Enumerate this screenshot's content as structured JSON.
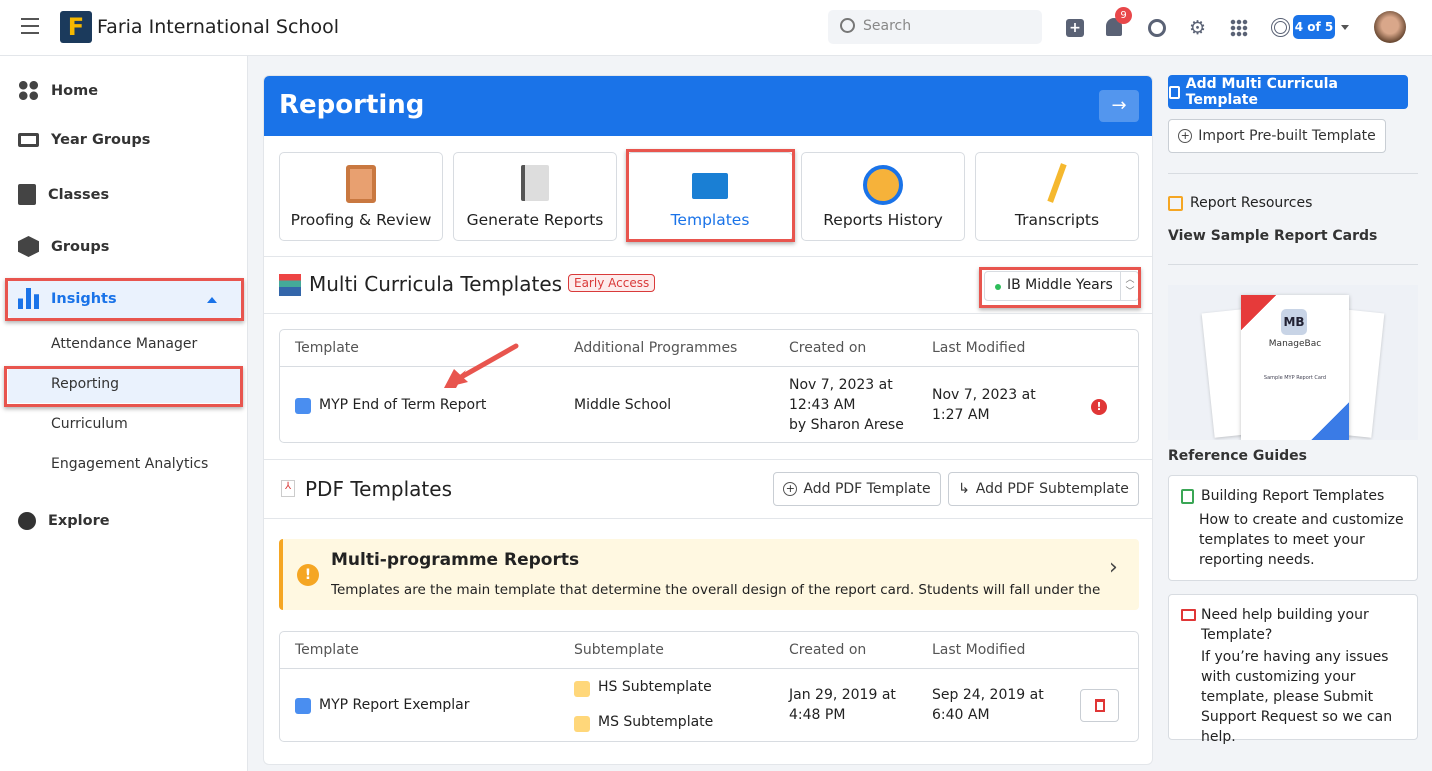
{
  "topbar": {
    "school_name": "Faria International School",
    "search_placeholder": "Search",
    "notification_count": "9",
    "progress_badge": "4 of 5"
  },
  "sidebar": {
    "items": [
      {
        "label": "Home"
      },
      {
        "label": "Year Groups"
      },
      {
        "label": "Classes"
      },
      {
        "label": "Groups"
      },
      {
        "label": "Insights"
      },
      {
        "label": "Explore"
      }
    ],
    "sub_items": [
      {
        "label": "Attendance Manager"
      },
      {
        "label": "Reporting"
      },
      {
        "label": "Curriculum"
      },
      {
        "label": "Engagement Analytics"
      }
    ]
  },
  "main": {
    "title": "Reporting",
    "tiles": [
      {
        "label": "Proofing & Review"
      },
      {
        "label": "Generate Reports"
      },
      {
        "label": "Templates"
      },
      {
        "label": "Reports History"
      },
      {
        "label": "Transcripts"
      }
    ],
    "multi": {
      "title": "Multi Curricula Templates",
      "badge": "Early Access",
      "programme": "IB Middle Years",
      "columns": [
        "Template",
        "Additional Programmes",
        "Created on",
        "Last Modified"
      ],
      "rows": [
        {
          "template": "MYP End of Term Report",
          "programmes": "Middle School",
          "created": "Nov 7, 2023 at 12:43 AM",
          "created_by": "by Sharon Arese",
          "modified": "Nov 7, 2023 at 1:27 AM"
        }
      ]
    },
    "pdf": {
      "title": "PDF Templates",
      "add_template": "Add PDF Template",
      "add_subtemplate": "Add PDF Subtemplate",
      "alert_title": "Multi-programme Reports",
      "alert_text": "Templates are the main template that determine the overall design of the report card. Students will fall under the…",
      "columns": [
        "Template",
        "Subtemplate",
        "Created on",
        "Last Modified"
      ],
      "rows": [
        {
          "template": "MYP Report Exemplar",
          "subtemplates": [
            "HS Subtemplate",
            "MS Subtemplate"
          ],
          "created": "Jan 29, 2019 at 4:48 PM",
          "modified": "Sep 24, 2019 at 6:40 AM"
        }
      ]
    }
  },
  "right": {
    "add_multi": "Add Multi Curricula Template",
    "import": "Import Pre-built Template",
    "resources": "Report Resources",
    "view_samples": "View Sample Report Cards",
    "sample_logo": "ManageBac",
    "sample_caption": "Sample MYP Report Card",
    "guides_title": "Reference Guides",
    "guides": [
      {
        "title": "Building Report Templates",
        "desc": "How to create and customize templates to meet your reporting needs."
      },
      {
        "title": "Need help building your Template?",
        "desc": "If you’re having any issues with customizing your template, please Submit Support Request so we can help."
      }
    ]
  },
  "colors": {
    "primary": "#1a73e8",
    "highlight": "#e8554e",
    "alert_bg": "#fff8e1",
    "alert_border": "#f5a623"
  }
}
